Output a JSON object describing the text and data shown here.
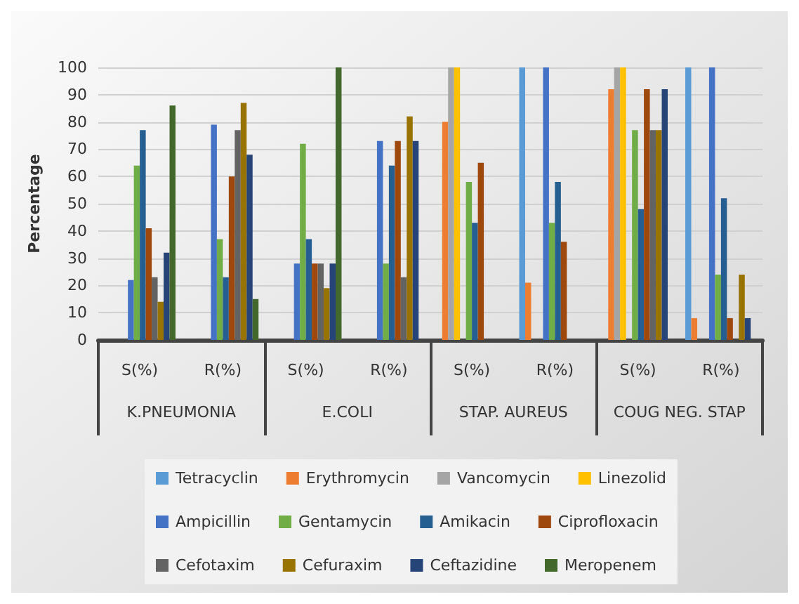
{
  "chart_data": {
    "type": "bar",
    "ylabel": "Percentage",
    "categories": [
      "S(%)",
      "R(%)",
      "S(%)",
      "R(%)",
      "S(%)",
      "R(%)",
      "S(%)",
      "R(%)"
    ],
    "annotations": [
      "K.PNEUMONIA",
      "E.COLI",
      "STAP. AUREUS",
      "COUG NEG. STAP"
    ],
    "series": [
      {
        "name": "Tetracyclin",
        "color": "#5b9bd5",
        "values": [
          0,
          0,
          0,
          0,
          0,
          100,
          0,
          100
        ]
      },
      {
        "name": "Erythromycin",
        "color": "#ed7d31",
        "values": [
          0,
          0,
          0,
          0,
          80,
          21,
          92,
          8
        ]
      },
      {
        "name": "Vancomycin",
        "color": "#a5a5a5",
        "values": [
          0,
          0,
          0,
          0,
          100,
          0,
          100,
          0
        ]
      },
      {
        "name": "Linezolid",
        "color": "#ffc000",
        "values": [
          0,
          0,
          0,
          0,
          100,
          0,
          100,
          0
        ]
      },
      {
        "name": "Ampicillin",
        "color": "#4472c4",
        "values": [
          22,
          79,
          28,
          73,
          0,
          100,
          0,
          100
        ]
      },
      {
        "name": "Gentamycin",
        "color": "#70ad47",
        "values": [
          64,
          37,
          72,
          28,
          58,
          43,
          77,
          24
        ]
      },
      {
        "name": "Amikacin",
        "color": "#255e91",
        "values": [
          77,
          23,
          37,
          64,
          43,
          58,
          48,
          52
        ]
      },
      {
        "name": "Ciprofloxacin",
        "color": "#9e480e",
        "values": [
          41,
          60,
          28,
          73,
          65,
          36,
          92,
          8
        ]
      },
      {
        "name": "Cefotaxim",
        "color": "#636363",
        "values": [
          23,
          77,
          28,
          23,
          0,
          0,
          77,
          0
        ]
      },
      {
        "name": "Cefuraxim",
        "color": "#997300",
        "values": [
          14,
          87,
          19,
          82,
          0,
          0,
          77,
          24
        ]
      },
      {
        "name": "Ceftazidine",
        "color": "#264478",
        "values": [
          32,
          68,
          28,
          73,
          0,
          0,
          92,
          8
        ]
      },
      {
        "name": "Meropenem",
        "color": "#43682b",
        "values": [
          86,
          15,
          100,
          0,
          0,
          0,
          0,
          0
        ]
      }
    ],
    "ylim": [
      0,
      100
    ],
    "yticks": [
      0,
      10,
      20,
      30,
      40,
      50,
      60,
      70,
      80,
      90,
      100
    ],
    "grid": "y",
    "legend": "bottom"
  }
}
